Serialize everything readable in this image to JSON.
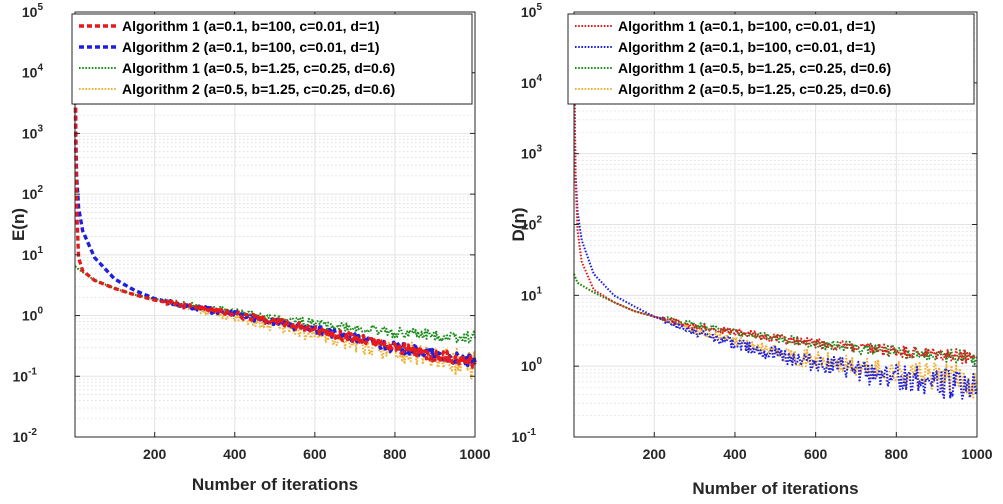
{
  "chart_data": [
    {
      "type": "line",
      "title": "",
      "xlabel": "Number of iterations",
      "ylabel": "E(n)",
      "y_scale": "log",
      "xlim": [
        1,
        1000
      ],
      "ylim": [
        0.01,
        100000
      ],
      "xticks": [
        "200",
        "400",
        "600",
        "800",
        "1000"
      ],
      "yticks": [
        {
          "base": "10",
          "exp": "-2"
        },
        {
          "base": "10",
          "exp": "-1"
        },
        {
          "base": "10",
          "exp": "0"
        },
        {
          "base": "10",
          "exp": "1"
        },
        {
          "base": "10",
          "exp": "2"
        },
        {
          "base": "10",
          "exp": "3"
        },
        {
          "base": "10",
          "exp": "4"
        },
        {
          "base": "10",
          "exp": "5"
        }
      ],
      "grid": true,
      "legend_position": "top-right",
      "series": [
        {
          "name": "Algorithm 1 (a=0.1, b=100, c=0.01, d=1)",
          "color": "#e41a1c",
          "style": "dashed-thick",
          "x": [
            1,
            3,
            5,
            10,
            20,
            50,
            100,
            150,
            200,
            300,
            400,
            500,
            600,
            700,
            800,
            900,
            1000
          ],
          "y": [
            30000,
            500,
            60,
            9,
            5.5,
            3.8,
            2.8,
            2.2,
            1.8,
            1.35,
            1.05,
            0.8,
            0.58,
            0.42,
            0.3,
            0.22,
            0.17
          ]
        },
        {
          "name": "Algorithm 2 (a=0.1, b=100, c=0.01, d=1)",
          "color": "#1f1fe0",
          "style": "dashed-thick",
          "x": [
            1,
            3,
            5,
            10,
            20,
            50,
            100,
            150,
            200,
            300,
            400,
            500,
            600,
            700,
            800,
            900,
            1000
          ],
          "y": [
            30000,
            1000,
            200,
            60,
            25,
            9,
            4,
            2.6,
            1.9,
            1.35,
            1.05,
            0.8,
            0.58,
            0.42,
            0.3,
            0.22,
            0.17
          ]
        },
        {
          "name": "Algorithm 1 (a=0.5, b=1.25, c=0.25, d=0.6)",
          "color": "#1a8c1a",
          "style": "dotted",
          "x": [
            1,
            10,
            50,
            100,
            150,
            200,
            300,
            400,
            500,
            600,
            700,
            800,
            900,
            1000
          ],
          "y": [
            6.5,
            5.8,
            3.8,
            2.8,
            2.2,
            1.9,
            1.45,
            1.15,
            0.9,
            0.75,
            0.62,
            0.53,
            0.47,
            0.43
          ]
        },
        {
          "name": "Algorithm 2 (a=0.5, b=1.25, c=0.25, d=0.6)",
          "color": "#f0b030",
          "style": "dotted",
          "x": [
            1,
            10,
            50,
            100,
            150,
            200,
            300,
            400,
            500,
            600,
            700,
            800,
            900,
            1000
          ],
          "y": [
            6.5,
            5.8,
            3.8,
            2.8,
            2.2,
            1.8,
            1.3,
            0.95,
            0.7,
            0.5,
            0.35,
            0.26,
            0.2,
            0.15
          ]
        }
      ]
    },
    {
      "type": "line",
      "title": "",
      "xlabel": "Number of iterations",
      "ylabel": "D(n)",
      "y_scale": "log",
      "xlim": [
        1,
        1000
      ],
      "ylim": [
        0.1,
        100000
      ],
      "xticks": [
        "200",
        "400",
        "600",
        "800",
        "1000"
      ],
      "yticks": [
        {
          "base": "10",
          "exp": "-1"
        },
        {
          "base": "10",
          "exp": "0"
        },
        {
          "base": "10",
          "exp": "1"
        },
        {
          "base": "10",
          "exp": "2"
        },
        {
          "base": "10",
          "exp": "3"
        },
        {
          "base": "10",
          "exp": "4"
        },
        {
          "base": "10",
          "exp": "5"
        }
      ],
      "grid": true,
      "legend_position": "top-right",
      "series": [
        {
          "name": "Algorithm 1 (a=0.1, b=100, c=0.01, d=1)",
          "color": "#e41a1c",
          "style": "dotted",
          "x": [
            1,
            3,
            5,
            10,
            20,
            50,
            100,
            150,
            200,
            300,
            400,
            500,
            600,
            700,
            800,
            900,
            1000
          ],
          "y": [
            60000,
            3000,
            400,
            80,
            30,
            12,
            8,
            6,
            5,
            3.7,
            3,
            2.5,
            2.1,
            1.8,
            1.6,
            1.45,
            1.35
          ]
        },
        {
          "name": "Algorithm 2 (a=0.1, b=100, c=0.01, d=1)",
          "color": "#1f1fe0",
          "style": "dotted",
          "x": [
            1,
            3,
            5,
            10,
            20,
            50,
            100,
            150,
            200,
            300,
            400,
            500,
            600,
            700,
            800,
            900,
            1000
          ],
          "y": [
            60000,
            3000,
            500,
            150,
            60,
            20,
            10,
            7,
            5,
            3,
            2.1,
            1.5,
            1.1,
            0.85,
            0.7,
            0.6,
            0.5
          ]
        },
        {
          "name": "Algorithm 1 (a=0.5, b=1.25, c=0.25, d=0.6)",
          "color": "#1a8c1a",
          "style": "dotted",
          "x": [
            1,
            10,
            50,
            100,
            150,
            200,
            300,
            400,
            500,
            600,
            700,
            800,
            900,
            1000
          ],
          "y": [
            20,
            15,
            11,
            8,
            6,
            5,
            3.8,
            3,
            2.5,
            2.1,
            1.8,
            1.6,
            1.45,
            1.35
          ]
        },
        {
          "name": "Algorithm 2 (a=0.5, b=1.25, c=0.25, d=0.6)",
          "color": "#f0b030",
          "style": "dotted",
          "x": [
            1,
            10,
            50,
            100,
            150,
            200,
            300,
            400,
            500,
            600,
            700,
            800,
            900,
            1000
          ],
          "y": [
            20,
            15,
            11,
            8,
            6,
            5,
            3.2,
            2.2,
            1.6,
            1.2,
            0.95,
            0.8,
            0.7,
            0.6
          ]
        }
      ]
    }
  ]
}
